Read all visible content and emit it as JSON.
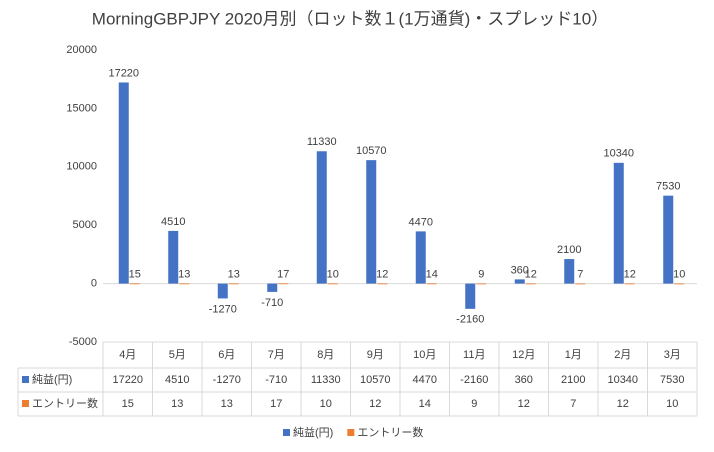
{
  "chart_data": {
    "type": "bar",
    "title": "MorningGBPJPY 2020月別（ロット数１(1万通貨)・スプレッド10）",
    "categories": [
      "4月",
      "5月",
      "6月",
      "7月",
      "8月",
      "9月",
      "10月",
      "11月",
      "12月",
      "1月",
      "2月",
      "3月"
    ],
    "series": [
      {
        "name": "純益(円)",
        "color": "#4472c4",
        "values": [
          17220,
          4510,
          -1270,
          -710,
          11330,
          10570,
          4470,
          -2160,
          360,
          2100,
          10340,
          7530
        ]
      },
      {
        "name": "エントリー数",
        "color": "#ed7d31",
        "values": [
          15,
          13,
          13,
          17,
          10,
          12,
          14,
          9,
          12,
          7,
          12,
          10
        ]
      }
    ],
    "ylim": [
      -5000,
      20000
    ],
    "yticks": [
      -5000,
      0,
      5000,
      10000,
      15000,
      20000
    ],
    "grid": false
  }
}
